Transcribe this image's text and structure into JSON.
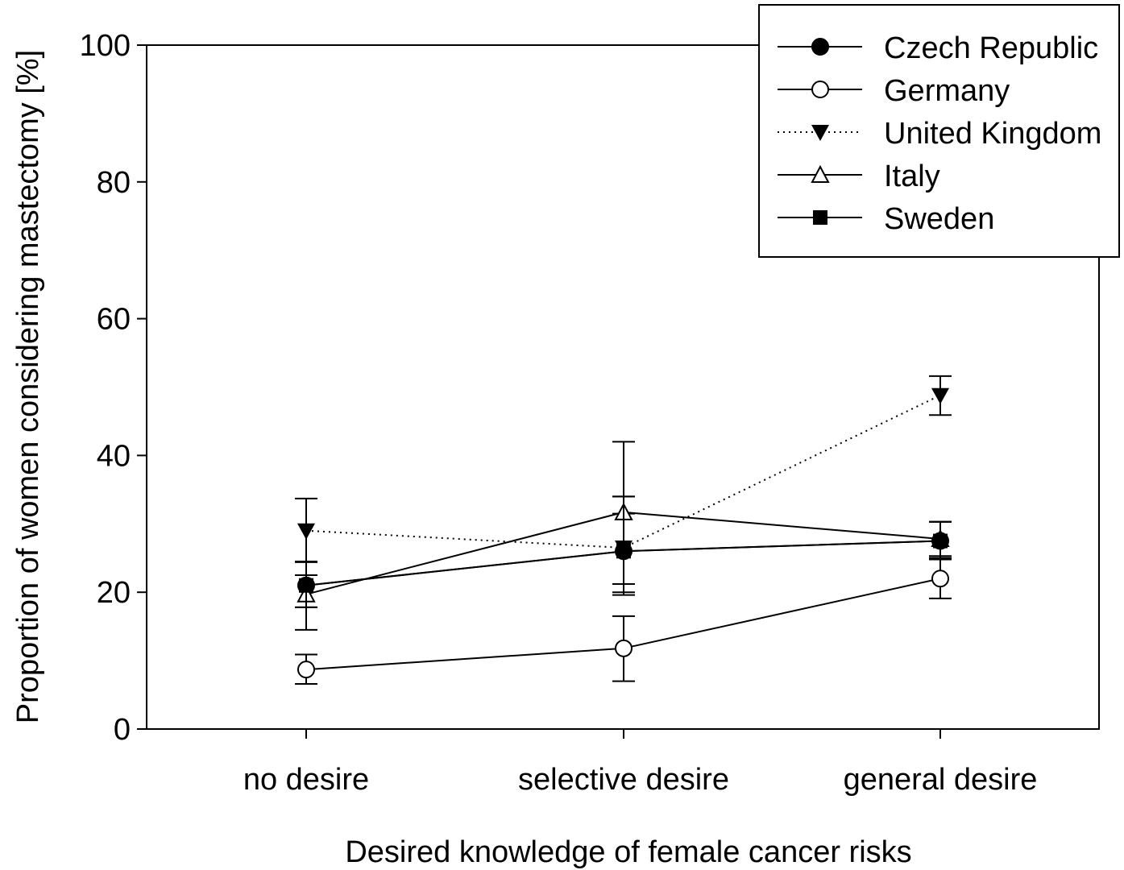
{
  "chart_data": {
    "type": "line",
    "title": "",
    "xlabel": "Desired knowledge of female cancer risks",
    "ylabel": "Proportion of women considering mastectomy [%]",
    "ylim": [
      0,
      100
    ],
    "yticks": [
      "0",
      "20",
      "40",
      "60",
      "80",
      "100"
    ],
    "categories": [
      "no desire",
      "selective desire",
      "general desire"
    ],
    "grid": false,
    "legend_position": "top-right",
    "series": [
      {
        "name": "Czech Republic",
        "marker": "filled-circle",
        "line": "solid",
        "values": [
          21,
          26,
          27.5
        ],
        "err_low": [
          14.5,
          20,
          25
        ],
        "err_high": [
          24.5,
          34,
          30.3
        ]
      },
      {
        "name": "Germany",
        "marker": "open-circle",
        "line": "solid",
        "values": [
          8.7,
          11.8,
          22
        ],
        "err_low": [
          6.6,
          7,
          19.1
        ],
        "err_high": [
          10.9,
          16.5,
          25
        ]
      },
      {
        "name": "United Kingdom",
        "marker": "filled-triangle-down",
        "line": "dotted",
        "values": [
          29,
          26.5,
          48.8
        ],
        "err_low": [
          24.4,
          21.2,
          45.9
        ],
        "err_high": [
          33.7,
          31.5,
          51.6
        ]
      },
      {
        "name": "Italy",
        "marker": "open-triangle-up",
        "line": "solid",
        "values": [
          19.7,
          31.7,
          27.8
        ],
        "err_low": [
          17.8,
          21.2,
          25.3
        ],
        "err_high": [
          22.5,
          42,
          30.3
        ]
      },
      {
        "name": "Sweden",
        "marker": "filled-square",
        "line": "solid",
        "values": [
          21,
          26,
          27.5
        ],
        "err_low": [
          17.8,
          19.6,
          24.8
        ],
        "err_high": [
          24.5,
          34,
          30.3
        ]
      }
    ]
  }
}
